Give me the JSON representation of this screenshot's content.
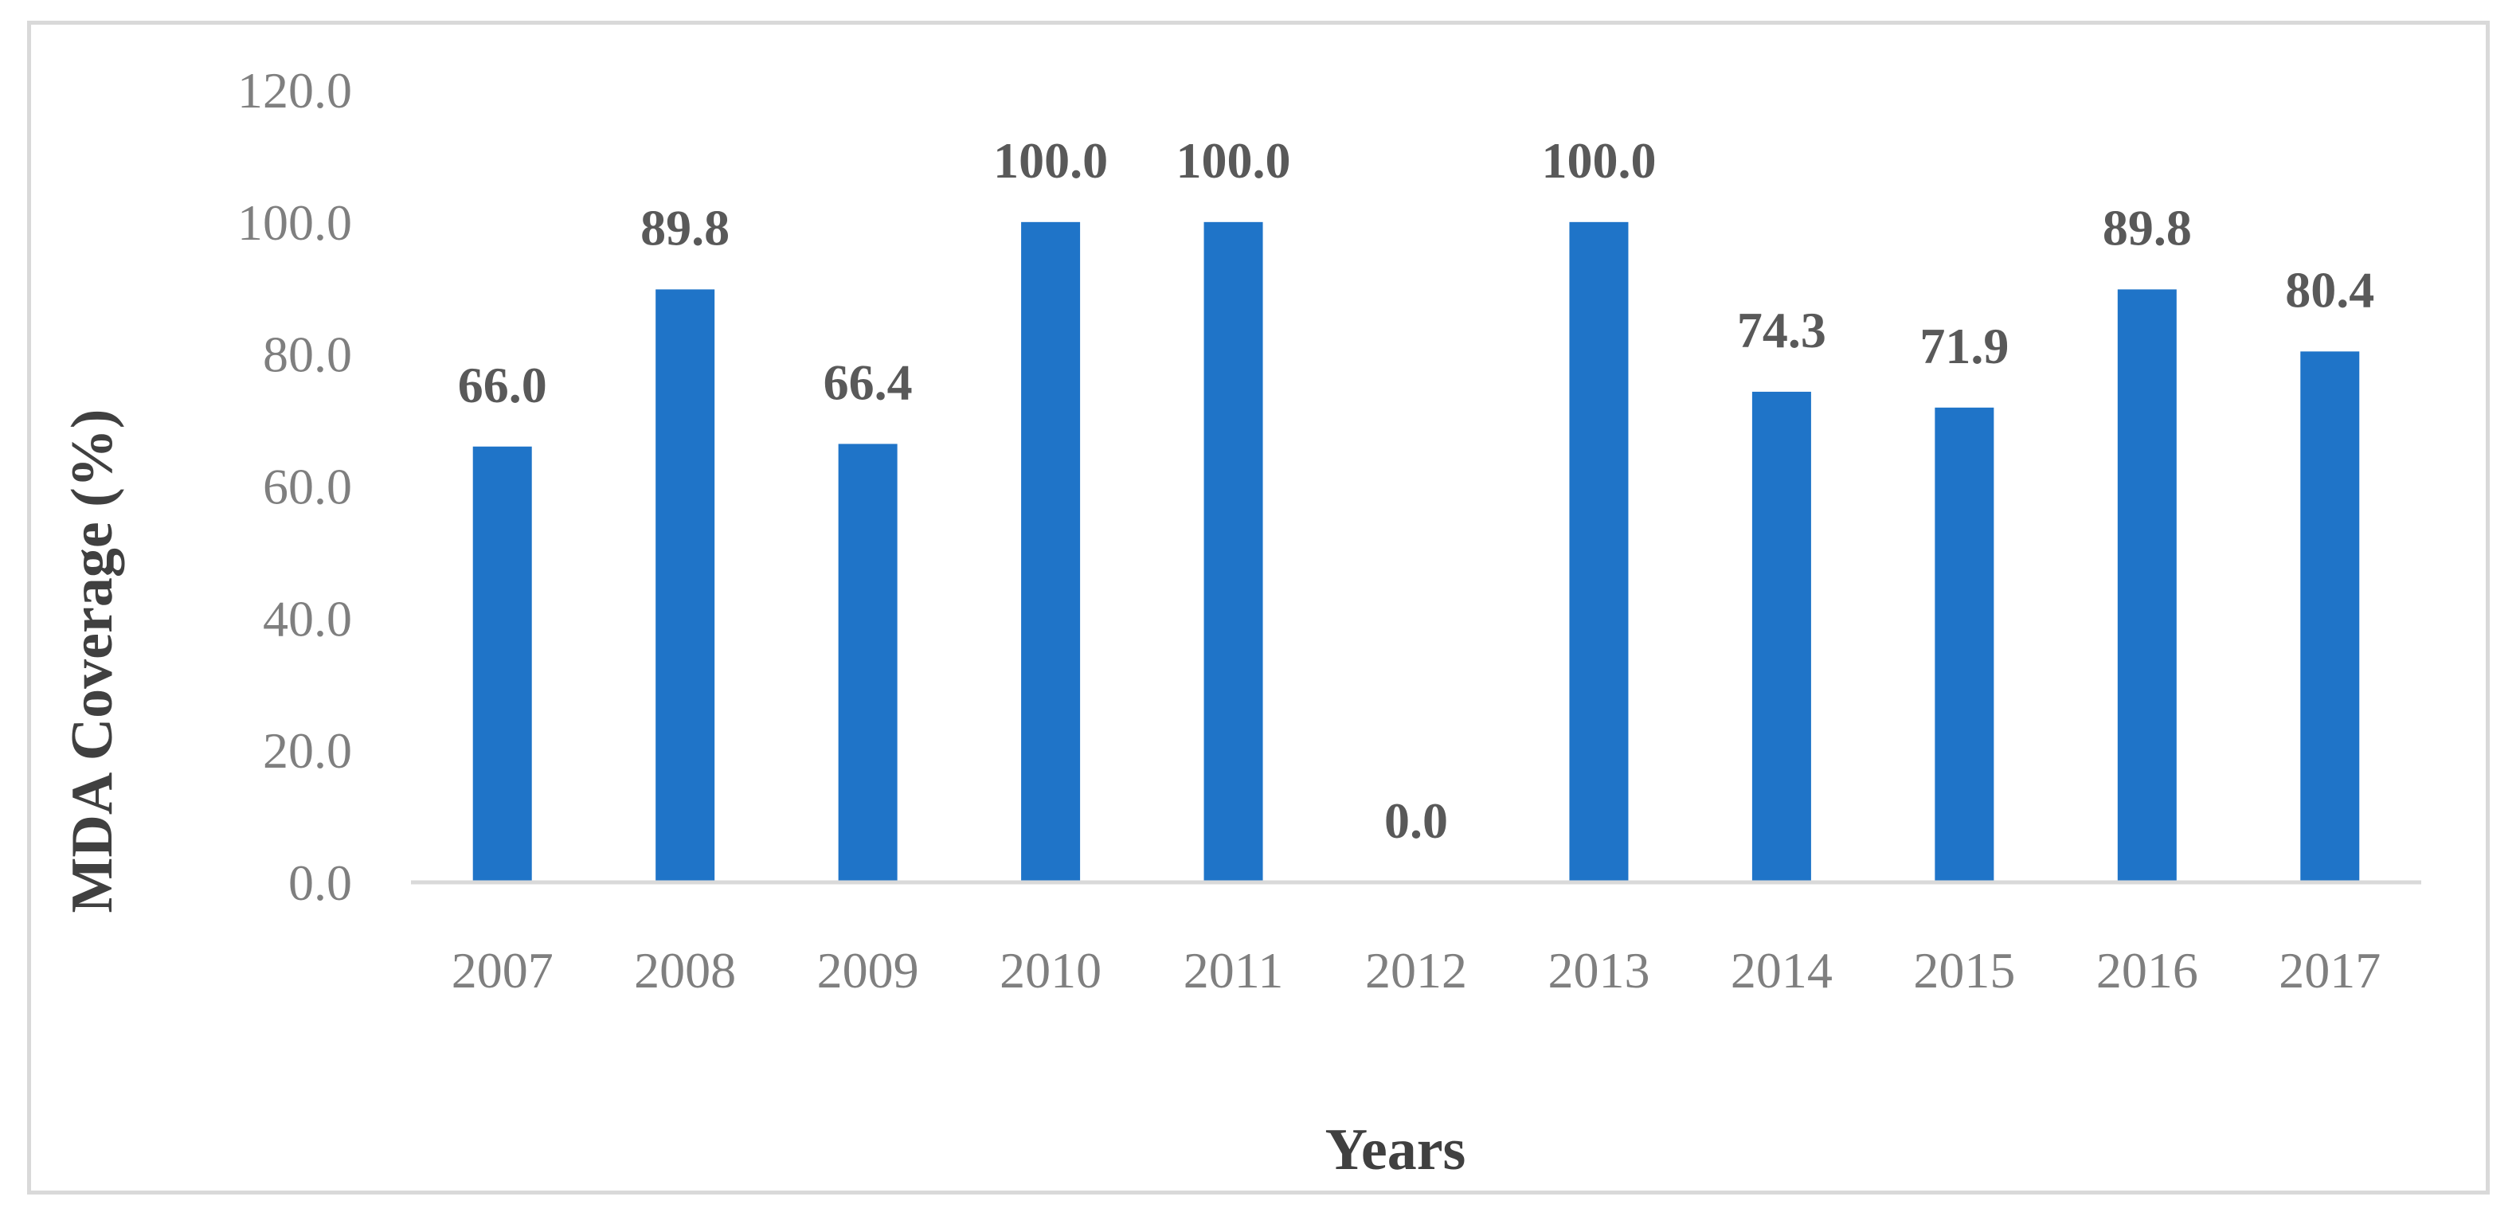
{
  "chart_data": {
    "type": "bar",
    "title": "",
    "xlabel": "Years",
    "ylabel": "MDA Coverage (%)",
    "categories": [
      "2007",
      "2008",
      "2009",
      "2010",
      "2011",
      "2012",
      "2013",
      "2014",
      "2015",
      "2016",
      "2017"
    ],
    "values": [
      66.0,
      89.8,
      66.4,
      100.0,
      100.0,
      0.0,
      100.0,
      74.3,
      71.9,
      89.8,
      80.4
    ],
    "data_labels": [
      "66.0",
      "89.8",
      "66.4",
      "100.0",
      "100.0",
      "0.0",
      "100.0",
      "74.3",
      "71.9",
      "89.8",
      "80.4"
    ],
    "y_ticks": [
      "0.0",
      "20.0",
      "40.0",
      "60.0",
      "80.0",
      "100.0",
      "120.0"
    ],
    "ylim": [
      0,
      120
    ],
    "grid": false,
    "legend": "none",
    "colors": {
      "bar": "#1f74c8",
      "axis_line": "#d9d9d9",
      "tick_label": "#7f7f7f",
      "data_label": "#595959",
      "axis_title": "#404040"
    }
  }
}
